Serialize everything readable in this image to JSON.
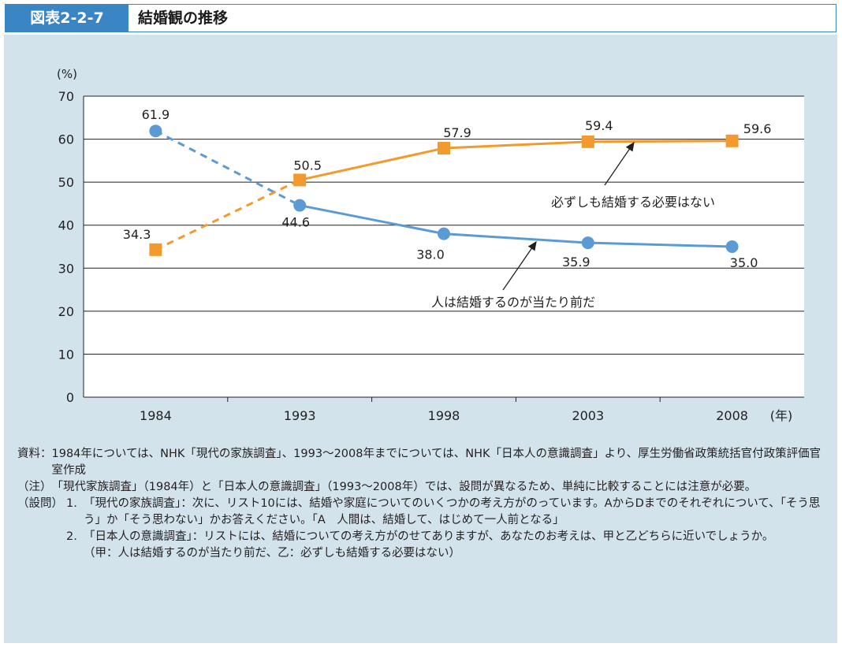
{
  "header": {
    "figure_label": "図表2-2-7",
    "title": "結婚観の推移"
  },
  "chart_data": {
    "type": "line",
    "title": "結婚観の推移",
    "ylabel": "(%)",
    "xlabel": "(年)",
    "ylim": [
      0,
      70
    ],
    "yticks": [
      0,
      10,
      20,
      30,
      40,
      50,
      60,
      70
    ],
    "categories": [
      "1984",
      "1993",
      "1998",
      "2003",
      "2008"
    ],
    "series": [
      {
        "name": "人は結婚するのが当たり前だ",
        "color": "#5b9bd5",
        "marker": "circle",
        "values": [
          61.9,
          44.6,
          38.0,
          35.9,
          35.0
        ],
        "labels": [
          "61.9",
          "44.6",
          "38.0",
          "35.9",
          "35.0"
        ],
        "dashed_segments": [
          0
        ]
      },
      {
        "name": "必ずしも結婚する必要はない",
        "color": "#f29a2e",
        "marker": "square",
        "values": [
          34.3,
          50.5,
          57.9,
          59.4,
          59.6
        ],
        "labels": [
          "34.3",
          "50.5",
          "57.9",
          "59.4",
          "59.6"
        ],
        "dashed_segments": [
          0
        ]
      }
    ],
    "annotations": [
      "必ずしも結婚する必要はない",
      "人は結婚するのが当たり前だ"
    ],
    "grid": true
  },
  "notes": {
    "source_label": "資料：",
    "source_text": "1984年については、NHK「現代の家族調査」、1993〜2008年までについては、NHK「日本人の意識調査」より、厚生労働省政策統括官付政策評価官室作成",
    "note_label": "（注）",
    "note_text": "「現代家族調査」（1984年）と「日本人の意識調査」（1993〜2008年）では、設問が異なるため、単純に比較することには注意が必要。",
    "question_label": "（設問）",
    "questions": [
      {
        "num": "1.",
        "text": "「現代の家族調査」：次に、リスト10には、結婚や家庭についてのいくつかの考え方がのっています。AからDまでのそれぞれについて、「そう思う」か「そう思わない」かお答えください。「A　人間は、結婚して、はじめて一人前となる」"
      },
      {
        "num": "2.",
        "text": "「日本人の意識調査」：リストには、結婚についての考え方がのせてありますが、あなたのお考えは、甲と乙どちらに近いでしょうか。"
      }
    ],
    "question_detail": "（甲：人は結婚するのが当たり前だ、乙：必ずしも結婚する必要はない）"
  }
}
